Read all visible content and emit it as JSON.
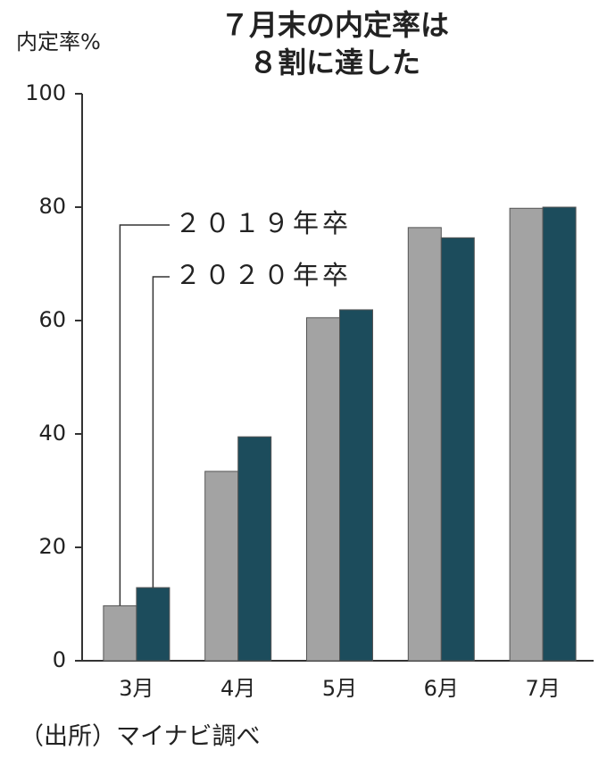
{
  "chart_data": {
    "type": "bar",
    "title": [
      "７月末の内定率は",
      "８割に達した"
    ],
    "y_label": "内定率%",
    "source": "（出所）マイナビ調べ",
    "categories": [
      "3月",
      "4月",
      "5月",
      "6月",
      "7月"
    ],
    "series": [
      {
        "name": "２０１９年卒",
        "color": "#a3a3a3",
        "values": [
          9.7,
          33.4,
          60.5,
          76.4,
          79.8
        ]
      },
      {
        "name": "２０２０年卒",
        "color": "#1c4c5c",
        "values": [
          12.9,
          39.5,
          61.9,
          74.6,
          80.0
        ]
      }
    ],
    "ylim": [
      0,
      100
    ],
    "yticks": [
      0,
      20,
      40,
      60,
      80,
      100
    ]
  }
}
